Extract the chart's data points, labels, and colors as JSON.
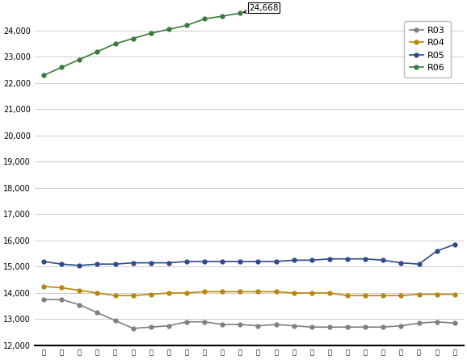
{
  "title": "",
  "annotation": "24,668",
  "series": {
    "R03": {
      "color": "#808080",
      "marker": "o",
      "markersize": 3.5,
      "linewidth": 1.2,
      "values": [
        13750,
        13750,
        13550,
        13250,
        12950,
        12650,
        12700,
        12750,
        12900,
        12900,
        12800,
        12800,
        12750,
        12800,
        12750,
        12700,
        12700,
        12700,
        12700,
        12700,
        12750,
        12850,
        12900,
        12850
      ]
    },
    "R04": {
      "color": "#B8860B",
      "marker": "o",
      "markersize": 3.5,
      "linewidth": 1.2,
      "values": [
        14250,
        14200,
        14100,
        14000,
        13900,
        13900,
        13950,
        14000,
        14000,
        14050,
        14050,
        14050,
        14050,
        14050,
        14000,
        14000,
        14000,
        13900,
        13900,
        13900,
        13900,
        13950,
        13950,
        13950
      ]
    },
    "R05": {
      "color": "#2E4A8B",
      "marker": "o",
      "markersize": 3.5,
      "linewidth": 1.2,
      "values": [
        15200,
        15100,
        15050,
        15100,
        15100,
        15150,
        15150,
        15150,
        15200,
        15200,
        15200,
        15200,
        15200,
        15200,
        15250,
        15250,
        15300,
        15300,
        15300,
        15250,
        15150,
        15100,
        15600,
        15850
      ]
    },
    "R06": {
      "color": "#3A7A3A",
      "marker": "o",
      "markersize": 3.5,
      "linewidth": 1.2,
      "values": [
        22300,
        22600,
        22900,
        23200,
        23500,
        23700,
        23900,
        24050,
        24200,
        24450,
        24550,
        24668,
        null,
        null,
        null,
        null,
        null,
        null,
        null,
        null,
        null,
        null,
        null,
        null
      ]
    }
  },
  "x_labels": [
    "上",
    "下",
    "上",
    "下",
    "上",
    "下",
    "上",
    "下",
    "上",
    "下",
    "上",
    "下",
    "上",
    "下",
    "上",
    "下",
    "上",
    "下",
    "上",
    "下",
    "上",
    "下",
    "上",
    "下"
  ],
  "ylim": [
    12000,
    24800
  ],
  "yticks": [
    12000,
    13000,
    14000,
    15000,
    16000,
    17000,
    18000,
    19000,
    20000,
    21000,
    22000,
    23000,
    24000
  ],
  "background_color": "#ffffff",
  "grid_color": "#cccccc"
}
